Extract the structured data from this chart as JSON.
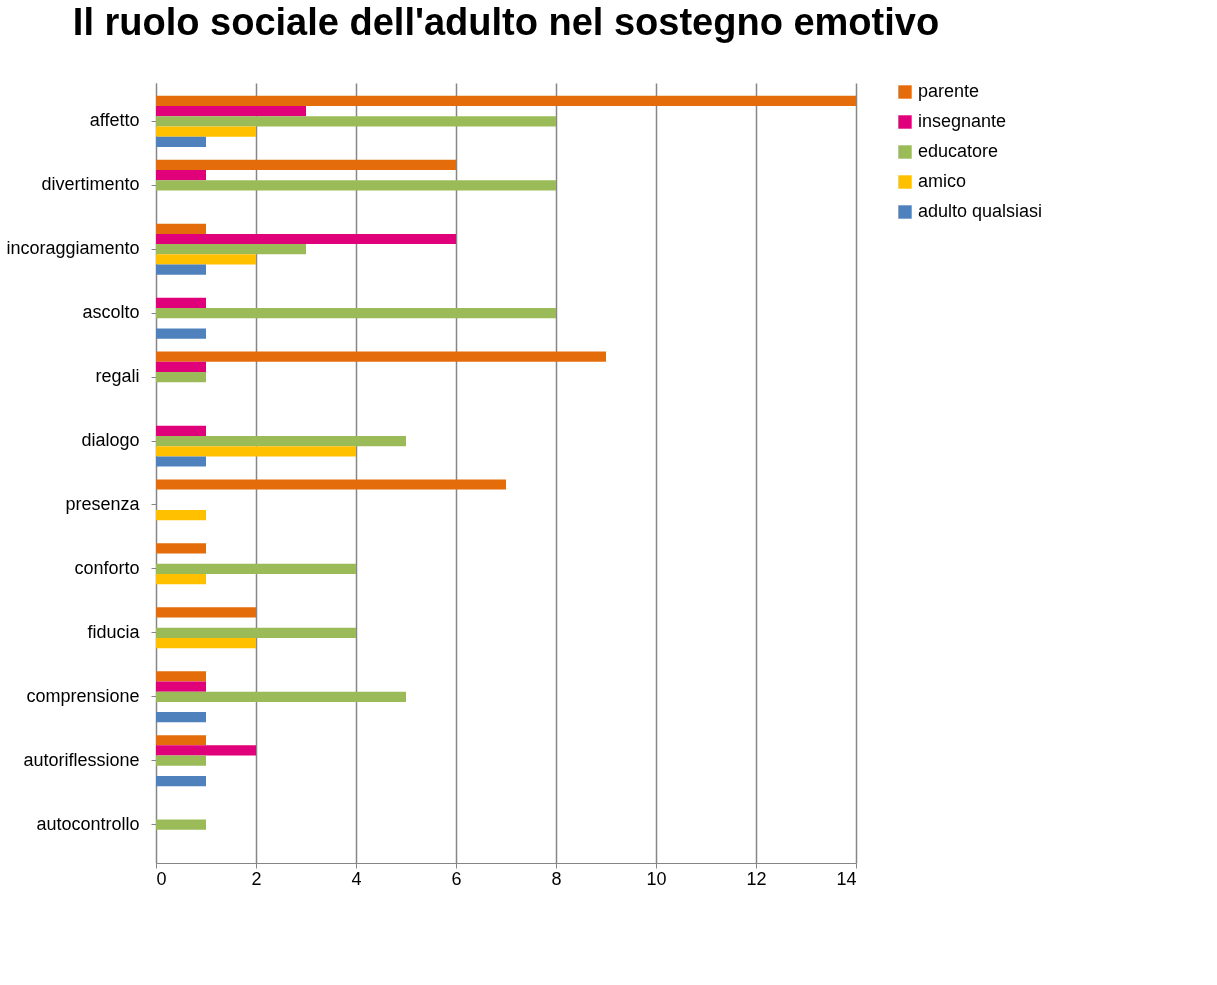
{
  "chart_data": {
    "type": "bar",
    "orientation": "horizontal",
    "title": "Il ruolo sociale dell'adulto nel sostegno emotivo",
    "categories": [
      "affetto",
      "divertimento",
      "incoraggiamento",
      "ascolto",
      "regali",
      "dialogo",
      "presenza",
      "conforto",
      "fiducia",
      "comprensione",
      "autoriflessione",
      "autocontrollo"
    ],
    "series": [
      {
        "name": "parente",
        "color": "#e46c0a",
        "values": [
          14,
          6,
          1,
          0,
          9,
          0,
          7,
          1,
          2,
          1,
          1,
          0
        ]
      },
      {
        "name": "insegnante",
        "color": "#e0007a",
        "values": [
          3,
          1,
          6,
          1,
          1,
          1,
          0,
          0,
          0,
          1,
          2,
          0
        ]
      },
      {
        "name": "educatore",
        "color": "#9bbb59",
        "values": [
          8,
          8,
          3,
          8,
          1,
          5,
          0,
          4,
          4,
          5,
          1,
          1
        ]
      },
      {
        "name": "amico",
        "color": "#ffc000",
        "values": [
          2,
          0,
          2,
          0,
          0,
          4,
          1,
          1,
          2,
          0,
          0,
          0
        ]
      },
      {
        "name": "adulto qualsiasi",
        "color": "#4f81bd",
        "values": [
          1,
          0,
          1,
          1,
          0,
          1,
          0,
          0,
          0,
          1,
          1,
          0
        ]
      }
    ],
    "xlim": [
      0,
      14
    ],
    "xticks": [
      0,
      2,
      4,
      6,
      8,
      10,
      12,
      14
    ],
    "grid": "x",
    "legend": "right"
  }
}
